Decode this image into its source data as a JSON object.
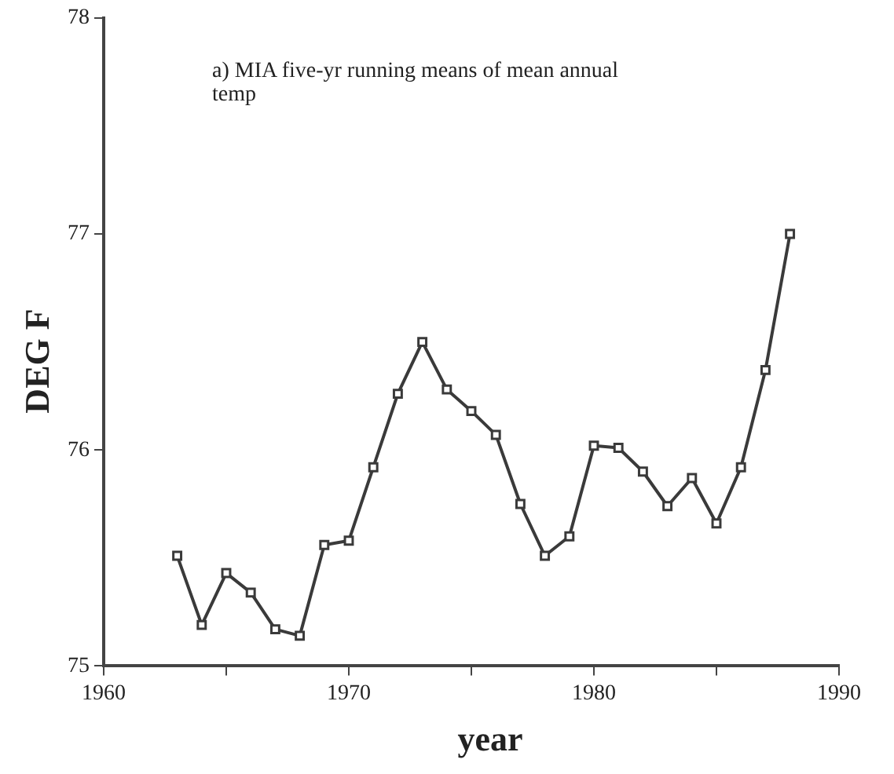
{
  "chart_data": {
    "type": "line",
    "title": "a) MIA  five-yr running means of mean annual temp",
    "xlabel": "year",
    "ylabel": "DEG F",
    "x": [
      1963,
      1964,
      1965,
      1966,
      1967,
      1968,
      1969,
      1970,
      1971,
      1972,
      1973,
      1974,
      1975,
      1976,
      1977,
      1978,
      1979,
      1980,
      1981,
      1982,
      1983,
      1984,
      1985,
      1986,
      1987,
      1988
    ],
    "series": [
      {
        "color": "#3a3a3a",
        "values": [
          75.51,
          75.19,
          75.43,
          75.34,
          75.17,
          75.14,
          75.56,
          75.58,
          75.92,
          76.26,
          76.5,
          76.28,
          76.18,
          76.07,
          75.75,
          75.51,
          75.6,
          76.02,
          76.01,
          75.9,
          75.74,
          75.87,
          75.66,
          75.92,
          76.37,
          77.0
        ]
      }
    ],
    "xlim": [
      1960,
      1990
    ],
    "xticks": [
      1960,
      {
        "value": 1965,
        "label": null
      },
      1970,
      {
        "value": 1975,
        "label": null
      },
      1980,
      {
        "value": 1985,
        "label": null
      },
      1990
    ],
    "ylim": [
      75,
      78
    ],
    "yticks": [
      75,
      76,
      77,
      78
    ],
    "grid": false,
    "legend": false,
    "marker": "square",
    "line_style": "solid"
  }
}
